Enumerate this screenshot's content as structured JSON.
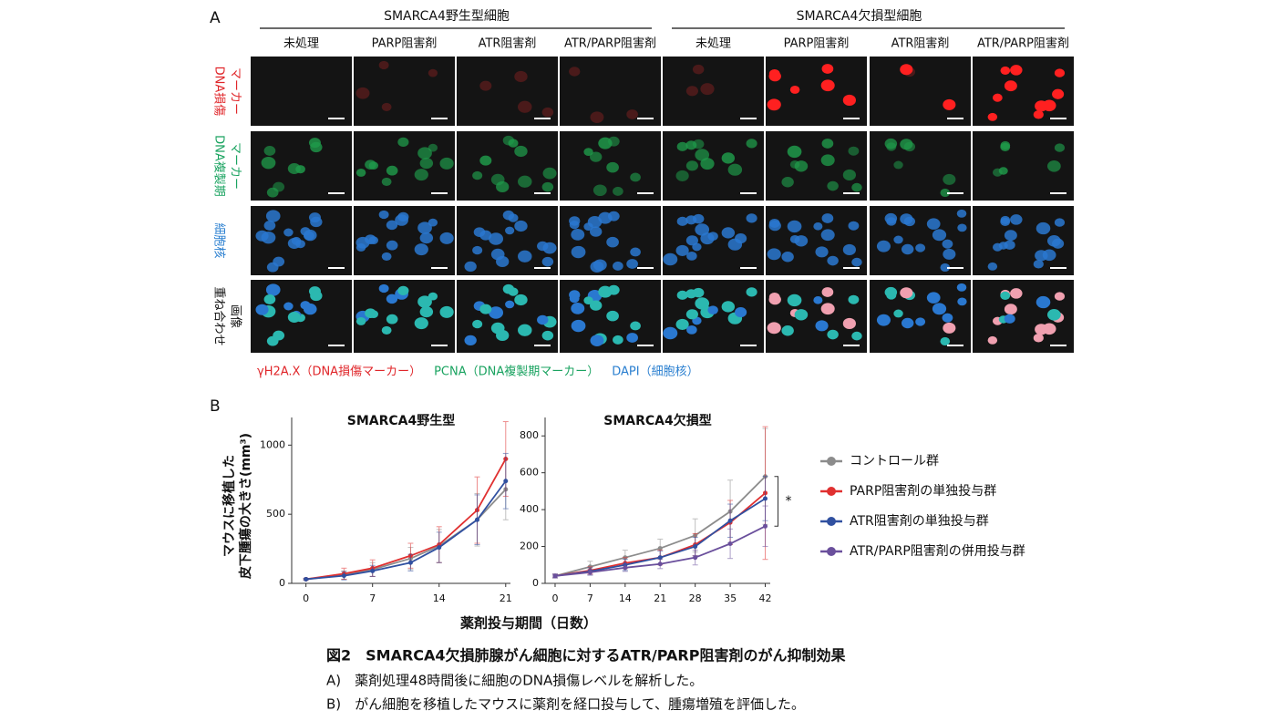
{
  "panel_a": {
    "label": "A",
    "groups": [
      "SMARCA4野生型細胞",
      "SMARCA4欠損型細胞"
    ],
    "columns": [
      "未処理",
      "PARP阻害剤",
      "ATR阻害剤",
      "ATR/PARP阻害剤",
      "未処理",
      "PARP阻害剤",
      "ATR阻害剤",
      "ATR/PARP阻害剤"
    ],
    "rows": [
      {
        "lines": [
          "DNA損傷",
          "マーカー"
        ],
        "color": "#e0262a"
      },
      {
        "lines": [
          "DNA複製期",
          "マーカー"
        ],
        "color": "#1aa360"
      },
      {
        "lines": [
          "細胞核"
        ],
        "color": "#2a7fd0"
      },
      {
        "lines": [
          "重ね合わせ",
          "画像"
        ],
        "color": "#111111"
      }
    ],
    "stains": [
      {
        "text": "γH2A.X（DNA損傷マーカー）",
        "color": "#e0262a"
      },
      {
        "text": "PCNA（DNA複製期マーカー）",
        "color": "#1aa360"
      },
      {
        "text": "DAPI（細胞核）",
        "color": "#2a7fd0"
      }
    ]
  },
  "panel_b": {
    "label": "B",
    "xlabel": "薬剤投与期間（日数）",
    "ylabel": [
      "マウスに移植した",
      "皮下腫瘍の大きさ(mm³)"
    ]
  },
  "chart_data": [
    {
      "type": "line",
      "title": "SMARCA4野生型",
      "x": [
        0,
        4,
        7,
        11,
        14,
        18,
        21
      ],
      "xlim": [
        -1.5,
        21.5
      ],
      "xticks": [
        0,
        7,
        14,
        21
      ],
      "ylim": [
        0,
        1200
      ],
      "yticks": [
        0,
        500,
        1000
      ],
      "series": [
        {
          "color": "#8c8c8c",
          "values": [
            30,
            60,
            100,
            180,
            270,
            460,
            680
          ],
          "errors": [
            5,
            30,
            50,
            80,
            120,
            190,
            220
          ]
        },
        {
          "color": "#e03030",
          "values": [
            30,
            70,
            110,
            200,
            280,
            530,
            900
          ],
          "errors": [
            5,
            40,
            60,
            90,
            130,
            240,
            270
          ]
        },
        {
          "color": "#3050a0",
          "values": [
            30,
            55,
            90,
            150,
            260,
            460,
            740
          ],
          "errors": [
            5,
            30,
            40,
            60,
            110,
            180,
            200
          ]
        }
      ]
    },
    {
      "type": "line",
      "title": "SMARCA4欠損型",
      "x": [
        0,
        7,
        14,
        21,
        28,
        35,
        42
      ],
      "xlim": [
        -2,
        43
      ],
      "xticks": [
        0,
        7,
        14,
        21,
        28,
        35,
        42
      ],
      "ylim": [
        0,
        900
      ],
      "yticks": [
        0,
        200,
        400,
        600,
        800
      ],
      "annotation": "*",
      "legend": "right",
      "series": [
        {
          "name": "コントロール群",
          "color": "#8c8c8c",
          "values": [
            40,
            90,
            140,
            190,
            260,
            390,
            580
          ],
          "errors": [
            10,
            30,
            40,
            50,
            90,
            170,
            260
          ]
        },
        {
          "name": "PARP阻害剤の単独投与群",
          "color": "#e03030",
          "values": [
            40,
            70,
            110,
            140,
            210,
            330,
            490
          ],
          "errors": [
            10,
            20,
            30,
            40,
            60,
            120,
            360
          ]
        },
        {
          "name": "ATR阻害剤の単独投与群",
          "color": "#3050a0",
          "values": [
            40,
            65,
            100,
            140,
            200,
            340,
            460
          ],
          "errors": [
            10,
            20,
            30,
            35,
            50,
            90,
            120
          ]
        },
        {
          "name": "ATR/PARP阻害剤の併用投与群",
          "color": "#6a4f9c",
          "values": [
            40,
            60,
            85,
            105,
            140,
            215,
            310
          ],
          "errors": [
            10,
            15,
            20,
            25,
            40,
            80,
            110
          ]
        }
      ]
    }
  ],
  "caption": {
    "title": "図2　SMARCA4欠損肺腺がん細胞に対するATR/PARP阻害剤のがん抑制効果",
    "lines": [
      "A)　薬剤処理48時間後に細胞のDNA損傷レベルを解析した。",
      "B)　がん細胞を移植したマウスに薬剤を経口投与して、腫瘍増殖を評価した。"
    ]
  }
}
